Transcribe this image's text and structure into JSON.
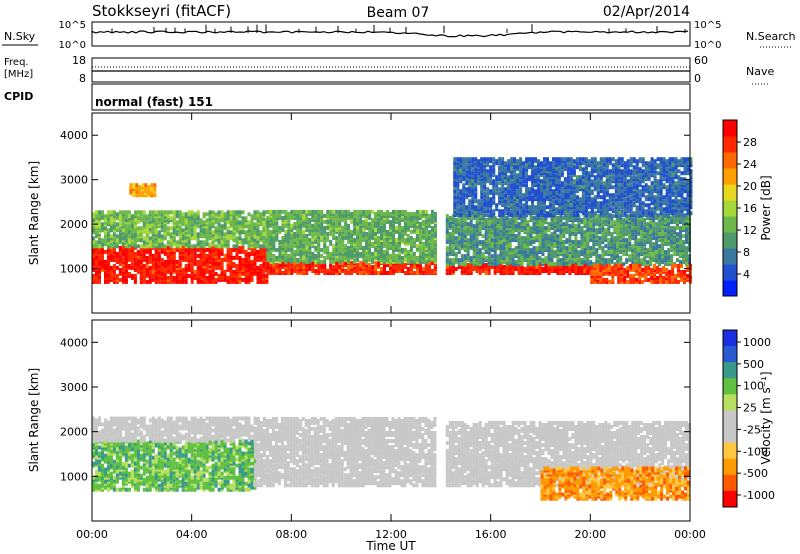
{
  "header": {
    "station": "Stokkseyri (fitACF)",
    "beam": "Beam 07",
    "date": "02/Apr/2014"
  },
  "panels": {
    "nsky": {
      "label": "N.Sky",
      "tick_top": "10^5",
      "tick_bottom": "10^0",
      "right_label": "N.Search"
    },
    "freq": {
      "label_line1": "Freq.",
      "label_line2": "[MHz]",
      "left_top": "18",
      "left_bottom": "8",
      "right_top": "60",
      "right_bottom": "0",
      "right_label": "Nave"
    },
    "cpid": {
      "label": "CPID",
      "value": "normal (fast) 151"
    }
  },
  "colors": {
    "power_scale": [
      "#0020ff",
      "#2050d0",
      "#3a78a0",
      "#4e9a6a",
      "#6cb84a",
      "#a6d83a",
      "#e8d820",
      "#ffa000",
      "#ff6a00",
      "#ff2a00",
      "#ff0000"
    ],
    "velocity_scale": [
      "#ff0000",
      "#ff5a00",
      "#ff9a00",
      "#ffc840",
      "#c8c8c8",
      "#c8c8c8",
      "#b8e060",
      "#60c040",
      "#3a9a8a",
      "#2a5ad0",
      "#1a30e0"
    ],
    "ground_scatter": "#c8c8c8"
  },
  "chart_data": [
    {
      "type": "heatmap",
      "name": "power",
      "xlabel": "",
      "ylabel": "Slant Range [km]",
      "xlim": [
        0,
        24
      ],
      "ylim": [
        0,
        4500
      ],
      "yticks": [
        1000,
        2000,
        3000,
        4000
      ],
      "colorbar": {
        "label": "Power [dB]",
        "ticks": [
          4,
          8,
          12,
          16,
          20,
          24,
          28
        ],
        "range": [
          0,
          32
        ]
      },
      "echo_bands": [
        {
          "t0": 0.0,
          "t1": 7.0,
          "r0": 700,
          "r1": 1500,
          "value": 29
        },
        {
          "t0": 0.0,
          "t1": 7.0,
          "r0": 1500,
          "r1": 2300,
          "value": 13
        },
        {
          "t0": 1.5,
          "t1": 2.5,
          "r0": 2650,
          "r1": 2900,
          "value": 22
        },
        {
          "t0": 7.0,
          "t1": 13.8,
          "r0": 900,
          "r1": 1150,
          "value": 28
        },
        {
          "t0": 7.0,
          "t1": 13.8,
          "r0": 1150,
          "r1": 2300,
          "value": 12
        },
        {
          "t0": 14.2,
          "t1": 20.0,
          "r0": 900,
          "r1": 1100,
          "value": 29
        },
        {
          "t0": 14.2,
          "t1": 24.0,
          "r0": 1100,
          "r1": 2200,
          "value": 10
        },
        {
          "t0": 14.5,
          "t1": 24.0,
          "r0": 2200,
          "r1": 3500,
          "value": 6
        },
        {
          "t0": 20.0,
          "t1": 24.0,
          "r0": 700,
          "r1": 1100,
          "value": 27
        }
      ]
    },
    {
      "type": "heatmap",
      "name": "velocity",
      "xlabel": "Time UT",
      "ylabel": "Slant Range [km]",
      "xlim": [
        0,
        24
      ],
      "ylim": [
        0,
        4500
      ],
      "yticks": [
        1000,
        2000,
        3000,
        4000
      ],
      "xticks": [
        "00:00",
        "04:00",
        "08:00",
        "12:00",
        "16:00",
        "20:00",
        "00:00"
      ],
      "colorbar": {
        "label": "Velocity [m s⁻¹]",
        "ticks": [
          "1000",
          "500",
          "100",
          "25",
          "-25",
          "-100",
          "-500",
          "-1000"
        ]
      },
      "echo_bands": [
        {
          "t0": 0.0,
          "t1": 6.5,
          "r0": 700,
          "r1": 1800,
          "value": 150,
          "ground_scatter": false
        },
        {
          "t0": 0.0,
          "t1": 6.5,
          "r0": 1800,
          "r1": 2300,
          "value": 0,
          "ground_scatter": true
        },
        {
          "t0": 6.5,
          "t1": 13.8,
          "r0": 800,
          "r1": 2300,
          "value": 0,
          "ground_scatter": true
        },
        {
          "t0": 14.2,
          "t1": 24.0,
          "r0": 800,
          "r1": 2200,
          "value": 0,
          "ground_scatter": true
        },
        {
          "t0": 18.0,
          "t1": 24.0,
          "r0": 500,
          "r1": 1200,
          "value": -300,
          "ground_scatter": false
        }
      ]
    }
  ]
}
